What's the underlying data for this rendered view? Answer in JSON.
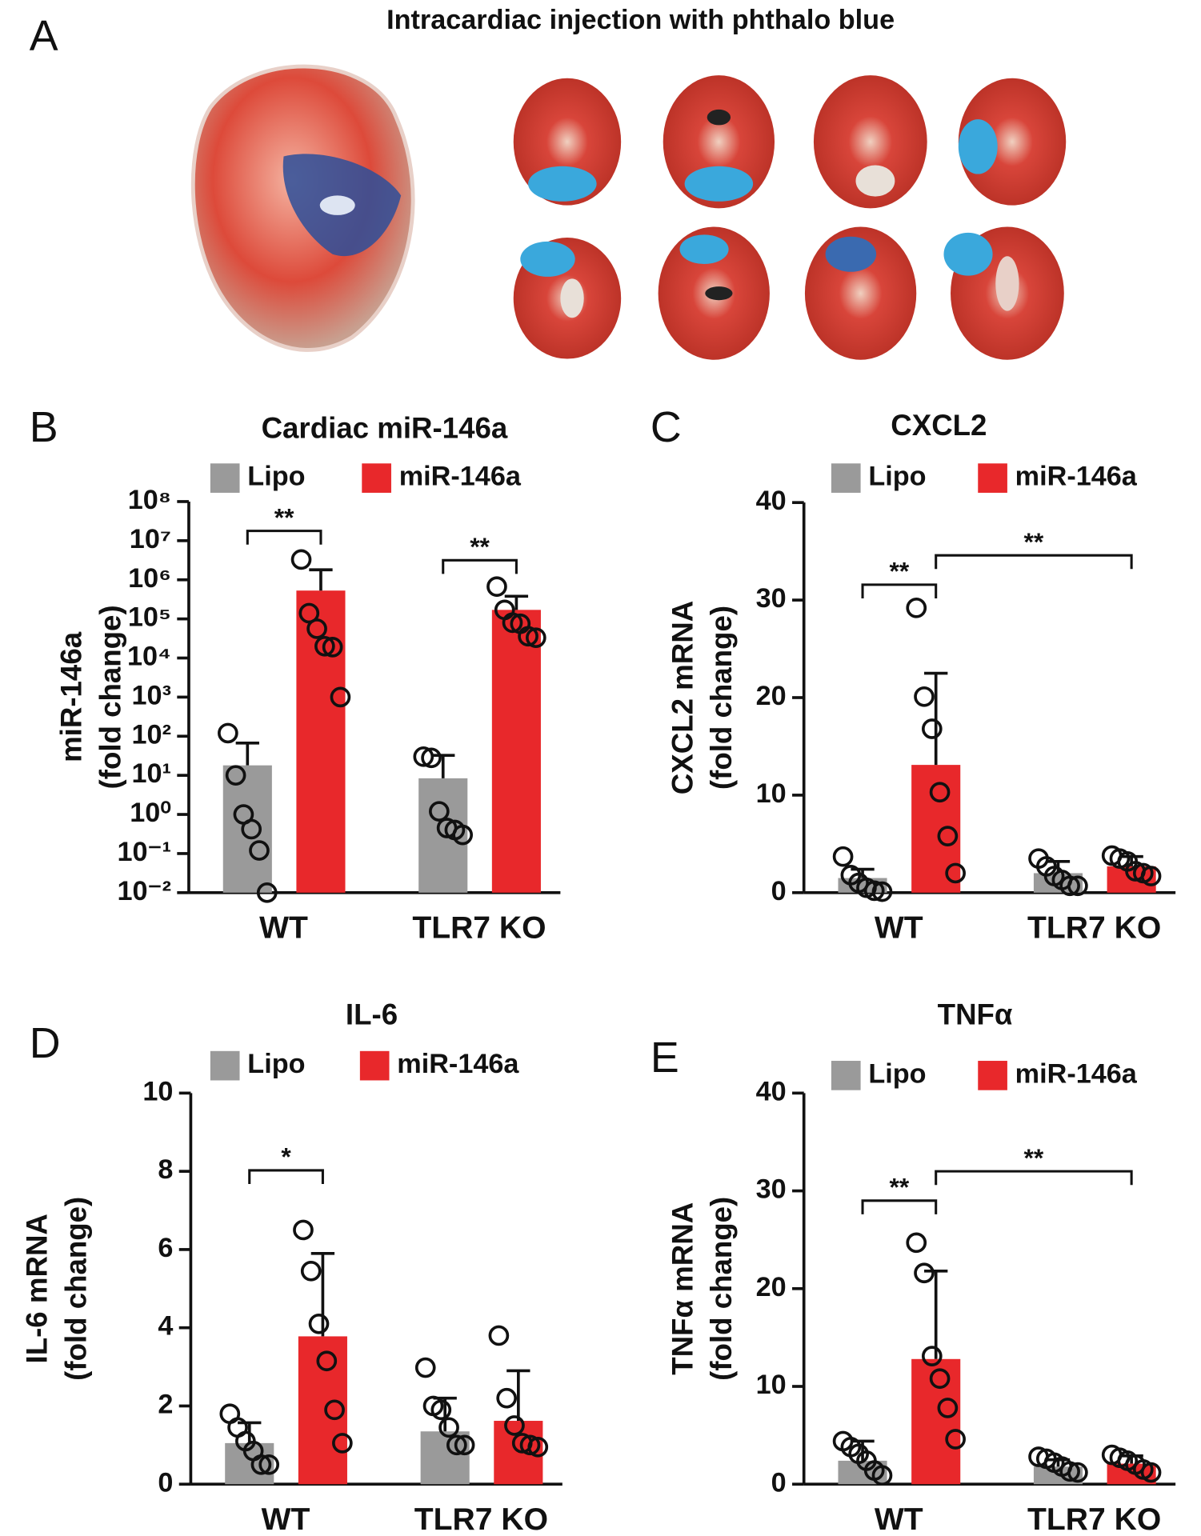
{
  "panel_a": {
    "label": "A",
    "title": "Intracardiac injection with phthalo blue"
  },
  "chart_data": [
    {
      "type": "bar",
      "panel": "B",
      "title": "Cardiac miR-146a",
      "ylabel": [
        "miR-146a",
        "(fold change)"
      ],
      "log_scale": true,
      "ylim": [
        0.01,
        100000000
      ],
      "yticks": [
        {
          "value": 0.01,
          "label": "10⁻²"
        },
        {
          "value": 0.1,
          "label": "10⁻¹"
        },
        {
          "value": 1,
          "label": "10⁰"
        },
        {
          "value": 10,
          "label": "10¹"
        },
        {
          "value": 100,
          "label": "10²"
        },
        {
          "value": 1000,
          "label": "10³"
        },
        {
          "value": 10000,
          "label": "10⁴"
        },
        {
          "value": 100000,
          "label": "10⁵"
        },
        {
          "value": 1000000,
          "label": "10⁶"
        },
        {
          "value": 10000000,
          "label": "10⁷"
        },
        {
          "value": 100000000,
          "label": "10⁸"
        }
      ],
      "categories": [
        "WT",
        "TLR7 KO"
      ],
      "series": [
        {
          "name": "Lipo",
          "color": "#9a9a9a",
          "values": [
            18,
            8.4
          ],
          "errors": [
            49,
            24
          ],
          "points": [
            [
              120,
              10,
              1,
              0.42,
              0.12,
              0.01
            ],
            [
              30,
              28,
              1.2,
              0.45,
              0.4,
              0.3
            ]
          ]
        },
        {
          "name": "miR-146a",
          "color": "#e8282b",
          "values": [
            530000,
            170000
          ],
          "errors": [
            1270000,
            210000
          ],
          "points": [
            [
              3300000,
              140000,
              56000,
              20000,
              19000,
              1000
            ],
            [
              670000,
              170000,
              80000,
              75000,
              36000,
              33000
            ]
          ]
        }
      ],
      "annotations": [
        "**",
        "**"
      ]
    },
    {
      "type": "bar",
      "panel": "C",
      "title": "CXCL2",
      "ylabel": [
        "CXCL2 mRNA",
        "(fold change)"
      ],
      "ylim": [
        0,
        40
      ],
      "yticks": [
        0,
        10,
        20,
        30,
        40
      ],
      "categories": [
        "WT",
        "TLR7 KO"
      ],
      "series": [
        {
          "name": "Lipo",
          "color": "#9a9a9a",
          "values": [
            1.5,
            2.0
          ],
          "errors": [
            0.9,
            1.2
          ],
          "points": [
            [
              3.7,
              1.8,
              1.0,
              0.5,
              0.2,
              0.1
            ],
            [
              3.5,
              2.7,
              1.7,
              1.3,
              0.7,
              0.7
            ]
          ]
        },
        {
          "name": "miR-146a",
          "color": "#e8282b",
          "values": [
            13.1,
            2.7
          ],
          "errors": [
            9.4,
            1.0
          ],
          "points": [
            [
              29.2,
              20.1,
              16.8,
              10.3,
              5.8,
              2.0
            ],
            [
              3.8,
              3.5,
              3.2,
              2.2,
              2.0,
              1.7
            ]
          ]
        }
      ],
      "annotations": [
        "**",
        "**"
      ]
    },
    {
      "type": "bar",
      "panel": "D",
      "title": "IL-6",
      "ylabel": [
        "IL-6 mRNA",
        "(fold change)"
      ],
      "ylim": [
        0,
        10
      ],
      "yticks": [
        0,
        2,
        4,
        6,
        8,
        10
      ],
      "categories": [
        "WT",
        "TLR7 KO"
      ],
      "series": [
        {
          "name": "Lipo",
          "color": "#9a9a9a",
          "values": [
            1.05,
            1.35
          ],
          "errors": [
            0.52,
            0.85
          ],
          "points": [
            [
              1.8,
              1.45,
              1.1,
              0.85,
              0.5,
              0.5
            ],
            [
              2.98,
              2.0,
              1.9,
              1.45,
              1.0,
              1.0
            ]
          ]
        },
        {
          "name": "miR-146a",
          "color": "#e8282b",
          "values": [
            3.78,
            1.62
          ],
          "errors": [
            2.12,
            1.28
          ],
          "points": [
            [
              6.5,
              5.45,
              4.1,
              3.15,
              1.9,
              1.05
            ],
            [
              3.8,
              2.2,
              1.5,
              1.05,
              1.0,
              0.95
            ]
          ]
        }
      ],
      "annotations": [
        "*"
      ]
    },
    {
      "type": "bar",
      "panel": "E",
      "title": "TNFα",
      "ylabel": [
        "TNFα mRNA",
        "(fold change)"
      ],
      "ylim": [
        0,
        40
      ],
      "yticks": [
        0,
        10,
        20,
        30,
        40
      ],
      "categories": [
        "WT",
        "TLR7 KO"
      ],
      "series": [
        {
          "name": "Lipo",
          "color": "#9a9a9a",
          "values": [
            2.4,
            1.8
          ],
          "errors": [
            2.0,
            0.7
          ],
          "points": [
            [
              4.4,
              3.8,
              3.1,
              2.4,
              1.4,
              0.9
            ],
            [
              2.8,
              2.6,
              2.2,
              1.8,
              1.3,
              1.2
            ]
          ]
        },
        {
          "name": "miR-146a",
          "color": "#e8282b",
          "values": [
            12.8,
            2.1
          ],
          "errors": [
            9.0,
            0.8
          ],
          "points": [
            [
              24.7,
              21.6,
              13.1,
              10.8,
              7.8,
              4.6
            ],
            [
              3.0,
              2.7,
              2.4,
              2.0,
              1.5,
              1.2
            ]
          ]
        }
      ],
      "annotations": [
        "**",
        "**"
      ]
    }
  ]
}
